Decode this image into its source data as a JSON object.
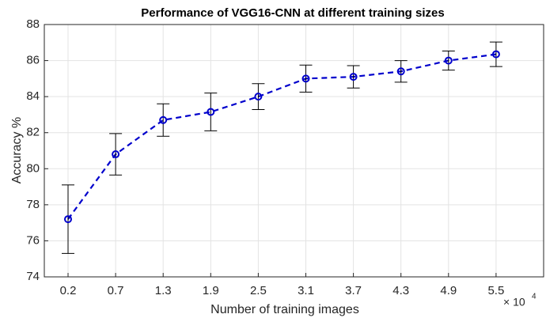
{
  "chart_data": {
    "type": "errorbar",
    "title": "Performance of VGG16-CNN at different training sizes",
    "xlabel": "Number of training images",
    "ylabel": "Accuracy %",
    "x_multiplier": {
      "base": "× 10",
      "exponent": "4"
    },
    "categories": [
      "0.2",
      "0.7",
      "1.3",
      "1.9",
      "2.5",
      "3.1",
      "3.7",
      "4.3",
      "4.9",
      "5.5"
    ],
    "series": [
      {
        "name": "Accuracy",
        "color": "#0000cc",
        "values": [
          77.2,
          80.8,
          82.7,
          83.15,
          84.0,
          85.0,
          85.1,
          85.4,
          86.0,
          86.35
        ],
        "errors": [
          1.9,
          1.15,
          0.9,
          1.05,
          0.72,
          0.75,
          0.62,
          0.6,
          0.53,
          0.68
        ]
      }
    ],
    "errorbar_color": "#000000",
    "ylim": [
      74,
      88
    ],
    "yticks": [
      74,
      76,
      78,
      80,
      82,
      84,
      86,
      88
    ],
    "grid": true
  }
}
